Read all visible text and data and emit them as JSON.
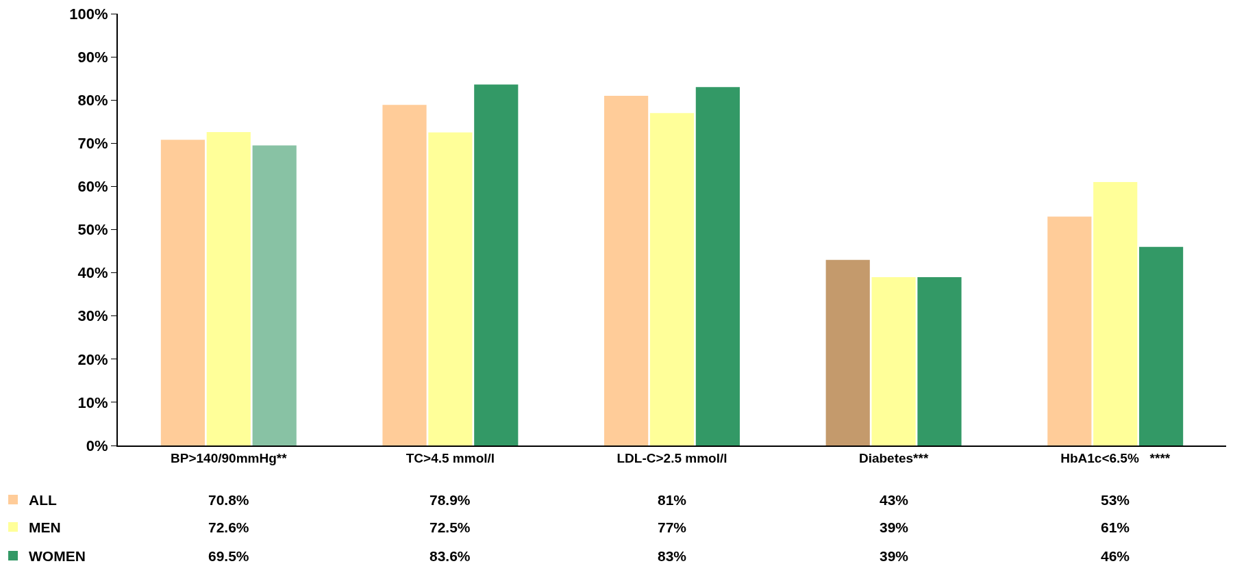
{
  "chart_data": {
    "type": "bar",
    "categories": [
      "BP>140/90mmHg**",
      "TC>4.5 mmol/l",
      "LDL-C>2.5 mmol/l",
      "Diabetes***",
      "HbA1c<6.5%   ****"
    ],
    "series": [
      {
        "name": "ALL",
        "color": "#ffcc99",
        "colors": [
          "#ffcc99",
          "#ffcc99",
          "#ffcc99",
          "#c49a6c",
          "#ffcc99"
        ],
        "values": [
          70.8,
          78.9,
          81,
          43,
          53
        ],
        "value_labels": [
          "70.8%",
          "78.9%",
          "81%",
          "43%",
          "53%"
        ]
      },
      {
        "name": "MEN",
        "color": "#ffff99",
        "colors": [
          "#ffff99",
          "#ffff99",
          "#ffff99",
          "#ffff99",
          "#ffff99"
        ],
        "values": [
          72.6,
          72.5,
          77,
          39,
          61
        ],
        "value_labels": [
          "72.6%",
          "72.5%",
          "77%",
          "39%",
          "61%"
        ]
      },
      {
        "name": "WOMEN",
        "color": "#339966",
        "colors": [
          "#88c2a4",
          "#339966",
          "#339966",
          "#339966",
          "#339966"
        ],
        "values": [
          69.5,
          83.6,
          83,
          39,
          46
        ],
        "value_labels": [
          "69.5%",
          "83.6%",
          "83%",
          "39%",
          "46%"
        ]
      }
    ],
    "ylim": [
      0,
      100
    ],
    "yticks": [
      {
        "value": 0,
        "label": "0%"
      },
      {
        "value": 10,
        "label": "10%"
      },
      {
        "value": 20,
        "label": "20%"
      },
      {
        "value": 30,
        "label": "30%"
      },
      {
        "value": 40,
        "label": "40%"
      },
      {
        "value": 50,
        "label": "50%"
      },
      {
        "value": 60,
        "label": "60%"
      },
      {
        "value": 70,
        "label": "70%"
      },
      {
        "value": 80,
        "label": "80%"
      },
      {
        "value": 90,
        "label": "90%"
      },
      {
        "value": 100,
        "label": "100%"
      }
    ],
    "grid": false,
    "legend": "bottom left"
  }
}
